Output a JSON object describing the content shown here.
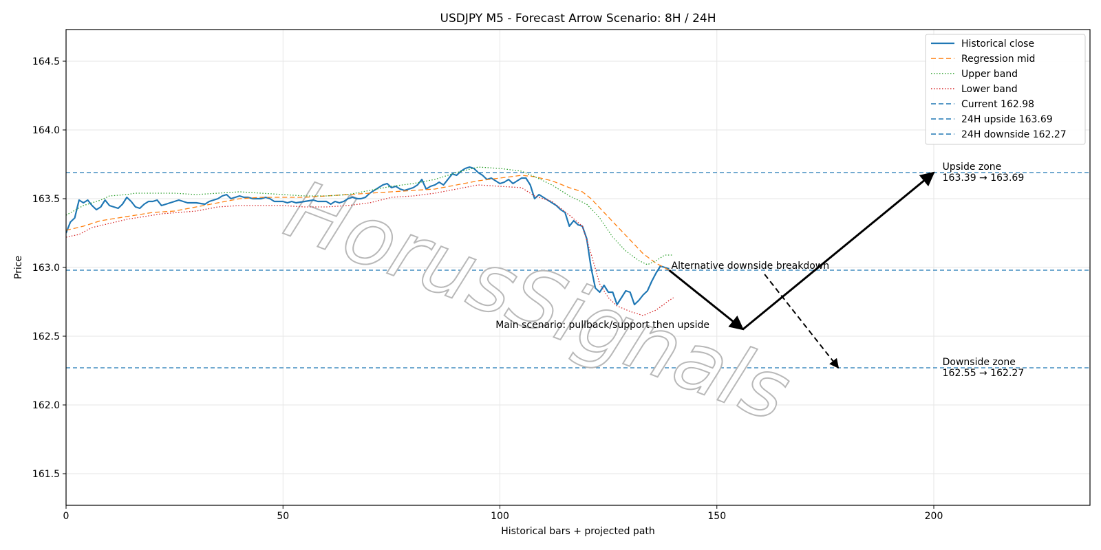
{
  "chart_data": {
    "type": "line",
    "title": "USDJPY M5 - Forecast Arrow Scenario: 8H / 24H",
    "xlabel": "Historical bars + projected path",
    "ylabel": "Price",
    "xlim": [
      0,
      236
    ],
    "ylim": [
      161.27,
      164.73
    ],
    "xticks": [
      0,
      50,
      100,
      150,
      200
    ],
    "yticks": [
      161.5,
      162.0,
      162.5,
      163.0,
      163.5,
      164.0,
      164.5
    ],
    "xtick_labels": [
      "0",
      "50",
      "100",
      "150",
      "200"
    ],
    "ytick_labels": [
      "161.5",
      "162.0",
      "162.5",
      "163.0",
      "163.5",
      "164.0",
      "164.5"
    ],
    "grid": true,
    "legend_position": "upper right",
    "watermark": "HorusSignals",
    "series": [
      {
        "name": "Historical close",
        "style": "solid",
        "color": "#1f77b4",
        "points": [
          [
            0,
            163.25
          ],
          [
            1,
            163.33
          ],
          [
            2,
            163.36
          ],
          [
            3,
            163.49
          ],
          [
            4,
            163.47
          ],
          [
            5,
            163.49
          ],
          [
            6,
            163.45
          ],
          [
            7,
            163.42
          ],
          [
            8,
            163.44
          ],
          [
            9,
            163.49
          ],
          [
            10,
            163.45
          ],
          [
            11,
            163.44
          ],
          [
            12,
            163.43
          ],
          [
            13,
            163.46
          ],
          [
            14,
            163.51
          ],
          [
            15,
            163.48
          ],
          [
            16,
            163.44
          ],
          [
            17,
            163.43
          ],
          [
            18,
            163.46
          ],
          [
            19,
            163.48
          ],
          [
            20,
            163.48
          ],
          [
            21,
            163.49
          ],
          [
            22,
            163.45
          ],
          [
            23,
            163.46
          ],
          [
            24,
            163.47
          ],
          [
            25,
            163.48
          ],
          [
            26,
            163.49
          ],
          [
            27,
            163.48
          ],
          [
            28,
            163.47
          ],
          [
            30,
            163.47
          ],
          [
            32,
            163.46
          ],
          [
            33,
            163.48
          ],
          [
            34,
            163.49
          ],
          [
            35,
            163.5
          ],
          [
            36,
            163.52
          ],
          [
            37,
            163.53
          ],
          [
            38,
            163.5
          ],
          [
            39,
            163.51
          ],
          [
            40,
            163.52
          ],
          [
            41,
            163.51
          ],
          [
            42,
            163.51
          ],
          [
            43,
            163.5
          ],
          [
            45,
            163.5
          ],
          [
            46,
            163.51
          ],
          [
            47,
            163.5
          ],
          [
            48,
            163.48
          ],
          [
            50,
            163.48
          ],
          [
            51,
            163.47
          ],
          [
            52,
            163.48
          ],
          [
            53,
            163.47
          ],
          [
            55,
            163.48
          ],
          [
            57,
            163.49
          ],
          [
            58,
            163.48
          ],
          [
            60,
            163.48
          ],
          [
            61,
            163.46
          ],
          [
            62,
            163.48
          ],
          [
            63,
            163.47
          ],
          [
            64,
            163.48
          ],
          [
            65,
            163.5
          ],
          [
            66,
            163.51
          ],
          [
            67,
            163.5
          ],
          [
            68,
            163.5
          ],
          [
            69,
            163.51
          ],
          [
            70,
            163.54
          ],
          [
            71,
            163.56
          ],
          [
            72,
            163.58
          ],
          [
            73,
            163.6
          ],
          [
            74,
            163.61
          ],
          [
            75,
            163.58
          ],
          [
            76,
            163.59
          ],
          [
            77,
            163.57
          ],
          [
            78,
            163.56
          ],
          [
            79,
            163.57
          ],
          [
            80,
            163.58
          ],
          [
            81,
            163.6
          ],
          [
            82,
            163.64
          ],
          [
            83,
            163.57
          ],
          [
            84,
            163.59
          ],
          [
            85,
            163.6
          ],
          [
            86,
            163.62
          ],
          [
            87,
            163.6
          ],
          [
            88,
            163.64
          ],
          [
            89,
            163.68
          ],
          [
            90,
            163.67
          ],
          [
            91,
            163.7
          ],
          [
            92,
            163.72
          ],
          [
            93,
            163.73
          ],
          [
            94,
            163.72
          ],
          [
            95,
            163.69
          ],
          [
            96,
            163.67
          ],
          [
            97,
            163.64
          ],
          [
            98,
            163.65
          ],
          [
            99,
            163.63
          ],
          [
            100,
            163.61
          ],
          [
            101,
            163.62
          ],
          [
            102,
            163.64
          ],
          [
            103,
            163.61
          ],
          [
            104,
            163.63
          ],
          [
            105,
            163.65
          ],
          [
            106,
            163.65
          ],
          [
            107,
            163.6
          ],
          [
            108,
            163.5
          ],
          [
            109,
            163.53
          ],
          [
            110,
            163.51
          ],
          [
            111,
            163.49
          ],
          [
            112,
            163.47
          ],
          [
            113,
            163.45
          ],
          [
            114,
            163.42
          ],
          [
            115,
            163.4
          ],
          [
            116,
            163.3
          ],
          [
            117,
            163.34
          ],
          [
            118,
            163.31
          ],
          [
            119,
            163.3
          ],
          [
            120,
            163.21
          ],
          [
            121,
            163.0
          ],
          [
            122,
            162.85
          ],
          [
            123,
            162.82
          ],
          [
            124,
            162.87
          ],
          [
            125,
            162.82
          ],
          [
            126,
            162.82
          ],
          [
            127,
            162.73
          ],
          [
            128,
            162.78
          ],
          [
            129,
            162.83
          ],
          [
            130,
            162.82
          ],
          [
            131,
            162.73
          ],
          [
            132,
            162.76
          ],
          [
            133,
            162.8
          ],
          [
            134,
            162.83
          ],
          [
            135,
            162.9
          ],
          [
            136,
            162.96
          ],
          [
            137,
            163.01
          ],
          [
            138,
            163.0
          ],
          [
            139,
            162.99
          ]
        ]
      },
      {
        "name": "Regression mid",
        "style": "dashed",
        "color": "#ff7f0e",
        "points": [
          [
            0,
            163.27
          ],
          [
            4,
            163.3
          ],
          [
            8,
            163.34
          ],
          [
            12,
            163.36
          ],
          [
            16,
            163.38
          ],
          [
            20,
            163.4
          ],
          [
            25,
            163.41
          ],
          [
            30,
            163.44
          ],
          [
            35,
            163.47
          ],
          [
            40,
            163.5
          ],
          [
            45,
            163.51
          ],
          [
            50,
            163.51
          ],
          [
            55,
            163.51
          ],
          [
            60,
            163.52
          ],
          [
            65,
            163.53
          ],
          [
            70,
            163.54
          ],
          [
            75,
            163.55
          ],
          [
            80,
            163.56
          ],
          [
            85,
            163.57
          ],
          [
            90,
            163.6
          ],
          [
            95,
            163.63
          ],
          [
            100,
            163.65
          ],
          [
            105,
            163.67
          ],
          [
            108,
            163.66
          ],
          [
            112,
            163.63
          ],
          [
            116,
            163.58
          ],
          [
            119,
            163.55
          ],
          [
            121,
            163.5
          ],
          [
            124,
            163.4
          ],
          [
            127,
            163.3
          ],
          [
            130,
            163.2
          ],
          [
            133,
            163.1
          ],
          [
            136,
            163.03
          ],
          [
            139,
            162.98
          ]
        ]
      },
      {
        "name": "Upper band",
        "style": "dotted",
        "color": "#2ca02c",
        "points": [
          [
            0,
            163.38
          ],
          [
            4,
            163.45
          ],
          [
            8,
            163.49
          ],
          [
            10,
            163.52
          ],
          [
            14,
            163.53
          ],
          [
            16,
            163.54
          ],
          [
            20,
            163.54
          ],
          [
            25,
            163.54
          ],
          [
            30,
            163.53
          ],
          [
            35,
            163.54
          ],
          [
            40,
            163.55
          ],
          [
            45,
            163.54
          ],
          [
            50,
            163.53
          ],
          [
            55,
            163.52
          ],
          [
            60,
            163.52
          ],
          [
            65,
            163.53
          ],
          [
            70,
            163.56
          ],
          [
            75,
            163.59
          ],
          [
            80,
            163.61
          ],
          [
            85,
            163.64
          ],
          [
            90,
            163.69
          ],
          [
            95,
            163.73
          ],
          [
            100,
            163.72
          ],
          [
            105,
            163.7
          ],
          [
            108,
            163.66
          ],
          [
            112,
            163.6
          ],
          [
            116,
            163.52
          ],
          [
            120,
            163.46
          ],
          [
            123,
            163.36
          ],
          [
            126,
            163.22
          ],
          [
            129,
            163.12
          ],
          [
            132,
            163.05
          ],
          [
            134,
            163.02
          ],
          [
            136,
            163.05
          ],
          [
            138,
            163.09
          ],
          [
            140,
            163.09
          ]
        ]
      },
      {
        "name": "Lower band",
        "style": "dotted",
        "color": "#d62728",
        "points": [
          [
            0,
            163.22
          ],
          [
            3,
            163.24
          ],
          [
            6,
            163.29
          ],
          [
            10,
            163.32
          ],
          [
            14,
            163.35
          ],
          [
            18,
            163.37
          ],
          [
            22,
            163.39
          ],
          [
            26,
            163.4
          ],
          [
            30,
            163.41
          ],
          [
            35,
            163.44
          ],
          [
            40,
            163.45
          ],
          [
            45,
            163.45
          ],
          [
            50,
            163.45
          ],
          [
            55,
            163.44
          ],
          [
            60,
            163.44
          ],
          [
            65,
            163.45
          ],
          [
            70,
            163.47
          ],
          [
            75,
            163.51
          ],
          [
            80,
            163.52
          ],
          [
            85,
            163.54
          ],
          [
            90,
            163.57
          ],
          [
            95,
            163.6
          ],
          [
            100,
            163.59
          ],
          [
            105,
            163.58
          ],
          [
            108,
            163.52
          ],
          [
            112,
            163.48
          ],
          [
            116,
            163.38
          ],
          [
            119,
            163.3
          ],
          [
            121,
            163.1
          ],
          [
            123,
            162.88
          ],
          [
            125,
            162.78
          ],
          [
            127,
            162.72
          ],
          [
            130,
            162.68
          ],
          [
            133,
            162.65
          ],
          [
            136,
            162.69
          ],
          [
            139,
            162.76
          ],
          [
            140,
            162.78
          ]
        ]
      }
    ],
    "hlines": [
      {
        "name": "Current 162.98",
        "y": 162.98,
        "color": "#1f77b4"
      },
      {
        "name": "24H upside 163.69",
        "y": 163.69,
        "color": "#1f77b4"
      },
      {
        "name": "24H downside 162.27",
        "y": 162.27,
        "color": "#1f77b4"
      }
    ],
    "arrows": [
      {
        "name": "main-down",
        "from": [
          139,
          162.98
        ],
        "to": [
          156,
          162.55
        ],
        "style": "solid"
      },
      {
        "name": "main-up",
        "from": [
          156,
          162.55
        ],
        "to": [
          200,
          163.69
        ],
        "style": "solid"
      },
      {
        "name": "alt-down",
        "from": [
          161,
          162.95
        ],
        "to": [
          178,
          162.27
        ],
        "style": "dashed"
      }
    ],
    "annotations": [
      {
        "name": "upside-zone",
        "lines": [
          "Upside zone",
          "163.39 → 163.69"
        ],
        "x": 202,
        "y": 163.69
      },
      {
        "name": "downside-zone",
        "lines": [
          "Downside zone",
          "162.55 → 162.27"
        ],
        "x": 202,
        "y": 162.27
      },
      {
        "name": "alt-scenario",
        "lines": [
          "Alternative downside breakdown"
        ],
        "x": 139.5,
        "y": 163.0
      },
      {
        "name": "main-scenario",
        "lines": [
          "Main scenario: pullback/support then upside"
        ],
        "x": 99,
        "y": 162.57
      }
    ]
  }
}
